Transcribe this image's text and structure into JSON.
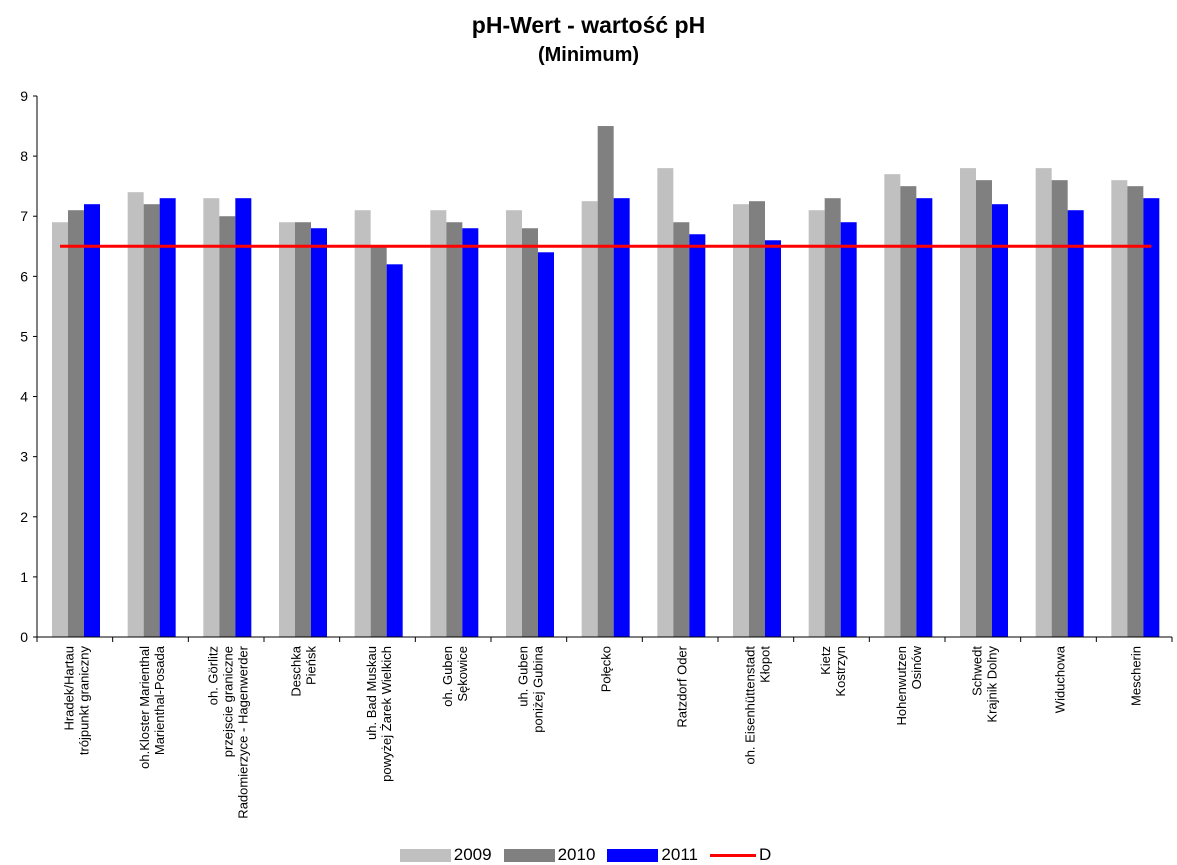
{
  "colors": {
    "s2009": "#c0c0c0",
    "s2010": "#808080",
    "s2011": "#0000ff",
    "reference": "#ff0000",
    "axis": "#000000"
  },
  "chart_data": {
    "type": "bar",
    "title": "pH-Wert - wartość pH",
    "subtitle": "(Minimum)",
    "xlabel": "",
    "ylabel": "",
    "ylim": [
      0,
      9
    ],
    "yticks": [
      "0",
      "1",
      "2",
      "3",
      "4",
      "5",
      "6",
      "7",
      "8",
      "9"
    ],
    "grid": false,
    "legend_position": "bottom",
    "categories": [
      [
        "Hradek/Hartau",
        "trójpunkt graniczny"
      ],
      [
        "oh.Kloster Marienthal",
        "Marienthal-Posada"
      ],
      [
        "oh. Görlitz",
        "przejscie graniczne",
        "Radomierzyce - Hagenwerder"
      ],
      [
        "Deschka",
        "Pieńsk"
      ],
      [
        "uh. Bad Muskau",
        "powyżej Żarek Wielkich"
      ],
      [
        "oh. Guben",
        "Sękowice"
      ],
      [
        "uh. Guben",
        "poniżej Gubina"
      ],
      [
        "Połęcko"
      ],
      [
        "Ratzdorf Oder"
      ],
      [
        "oh. Eisenhüttenstadt",
        "Kłopot"
      ],
      [
        "Kietz",
        "Kostrzyn"
      ],
      [
        "Hohenwutzen",
        "Osinów"
      ],
      [
        "Schwedt",
        "Krajnik Dolny"
      ],
      [
        "Widuchowa"
      ],
      [
        "Mescherin"
      ]
    ],
    "series": [
      {
        "name": "2009",
        "values": [
          6.9,
          7.4,
          7.3,
          6.9,
          7.1,
          7.1,
          7.1,
          7.25,
          7.8,
          7.2,
          7.1,
          7.7,
          7.8,
          7.8,
          7.6
        ]
      },
      {
        "name": "2010",
        "values": [
          7.1,
          7.2,
          7.0,
          6.9,
          6.5,
          6.9,
          6.8,
          8.5,
          6.9,
          7.25,
          7.3,
          7.5,
          7.6,
          7.6,
          7.5
        ]
      },
      {
        "name": "2011",
        "values": [
          7.2,
          7.3,
          7.3,
          6.8,
          6.2,
          6.8,
          6.4,
          7.3,
          6.7,
          6.6,
          6.9,
          7.3,
          7.2,
          7.1,
          7.3
        ]
      }
    ],
    "reference_line": {
      "name": "D",
      "value": 6.5
    }
  }
}
